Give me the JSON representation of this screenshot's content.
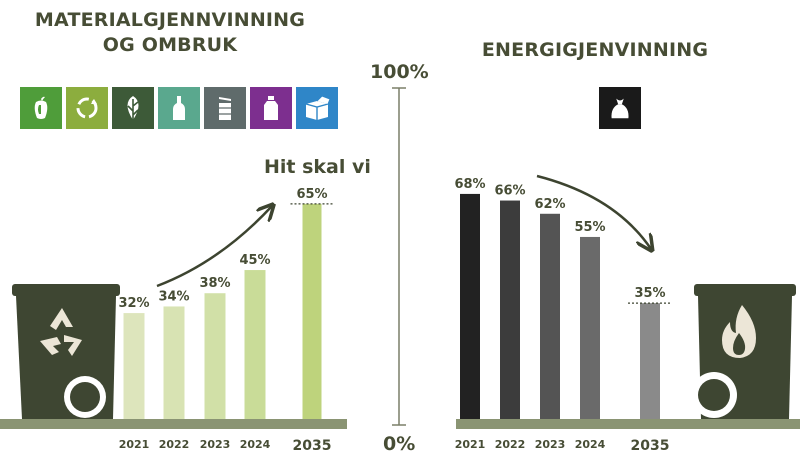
{
  "titles": {
    "left_line1": "MATERIALGJENNVINNING",
    "left_line2": "OG OMBRUK",
    "right": "ENERGIGJENVINNING",
    "target_label": "Hit skal vi"
  },
  "scale": {
    "top": "100%",
    "bottom": "0%"
  },
  "icons": {
    "left": [
      {
        "name": "food-waste-icon",
        "color": "#4f9d3a"
      },
      {
        "name": "recycle-icon",
        "color": "#8cad3e"
      },
      {
        "name": "garden-waste-icon",
        "color": "#3d5a38"
      },
      {
        "name": "glass-bottle-icon",
        "color": "#5aa88e"
      },
      {
        "name": "metal-can-icon",
        "color": "#5f6b6b"
      },
      {
        "name": "plastic-bottle-icon",
        "color": "#7d2f8f"
      },
      {
        "name": "paper-cardboard-icon",
        "color": "#2f86c8"
      }
    ],
    "right": {
      "name": "residual-waste-bag-icon",
      "color": "#1a1a1a"
    }
  },
  "chart_data": [
    {
      "type": "bar",
      "title": "MATERIALGJENNVINNING OG OMBRUK",
      "categories": [
        "2021",
        "2022",
        "2023",
        "2024",
        "2035"
      ],
      "values": [
        32,
        34,
        38,
        45,
        65
      ],
      "labels": [
        "32%",
        "34%",
        "38%",
        "45%",
        "65%"
      ],
      "colors": [
        "#dde5bc",
        "#d8e3b3",
        "#d1e0a7",
        "#c9dc98",
        "#bed37c"
      ],
      "ylim": [
        0,
        100
      ]
    },
    {
      "type": "bar",
      "title": "ENERGIGJENVINNING",
      "categories": [
        "2021",
        "2022",
        "2023",
        "2024",
        "2035"
      ],
      "values": [
        68,
        66,
        62,
        55,
        35
      ],
      "labels": [
        "68%",
        "66%",
        "62%",
        "55%",
        "35%"
      ],
      "colors": [
        "#222222",
        "#3c3c3c",
        "#545454",
        "#6a6a6a",
        "#8a8a8a"
      ],
      "ylim": [
        0,
        100
      ]
    }
  ],
  "colors": {
    "ground": "#8a9473",
    "bin": "#3e4632",
    "text": "#474d35",
    "axis": "#7a7f68"
  }
}
